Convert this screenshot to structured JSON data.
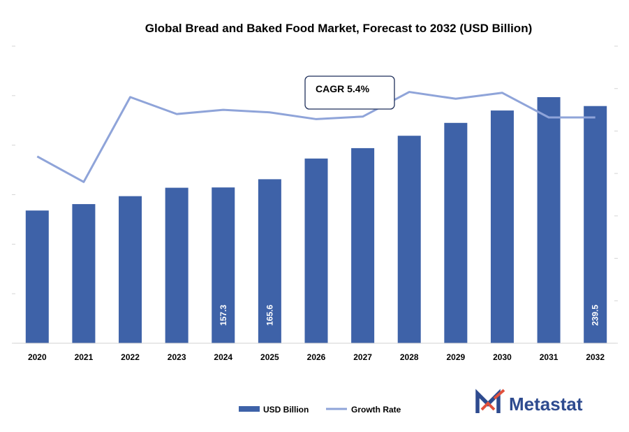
{
  "chart_data": {
    "type": "bar",
    "title": "Global Bread and Baked Food Market, Forecast to 2032 (USD Billion)",
    "xlabel": "",
    "ylabel": "",
    "categories": [
      "2020",
      "2021",
      "2022",
      "2023",
      "2024",
      "2025",
      "2026",
      "2027",
      "2028",
      "2029",
      "2030",
      "2031",
      "2032"
    ],
    "ylim": [
      0,
      300
    ],
    "grid": false,
    "legend_position": "bottom-center",
    "series": [
      {
        "name": "USD Billion",
        "type": "bar",
        "color": "#3E62A8",
        "values": [
          134.0,
          140.5,
          148.5,
          157.0,
          157.3,
          165.6,
          186.5,
          197.0,
          209.5,
          222.5,
          235.0,
          248.5,
          239.5
        ],
        "data_labels": [
          "",
          "",
          "",
          "",
          "157.3",
          "165.6",
          "",
          "",
          "",
          "",
          "",
          "",
          "239.5"
        ]
      },
      {
        "name": "Growth Rate",
        "type": "line",
        "color": "#8FA4D9",
        "axis": "secondary",
        "values": [
          4.9,
          4.6,
          5.6,
          5.4,
          5.45,
          5.42,
          5.34,
          5.37,
          5.66,
          5.58,
          5.65,
          5.36,
          5.36
        ],
        "ylim": [
          2.7,
          6.2
        ]
      }
    ],
    "annotations": [
      {
        "text": "CAGR 5.4%"
      }
    ]
  },
  "brand": {
    "name": "Metastat",
    "colors": {
      "primary": "#2E4B8F",
      "accent": "#E0503C",
      "text": "#2E4B8F"
    }
  }
}
